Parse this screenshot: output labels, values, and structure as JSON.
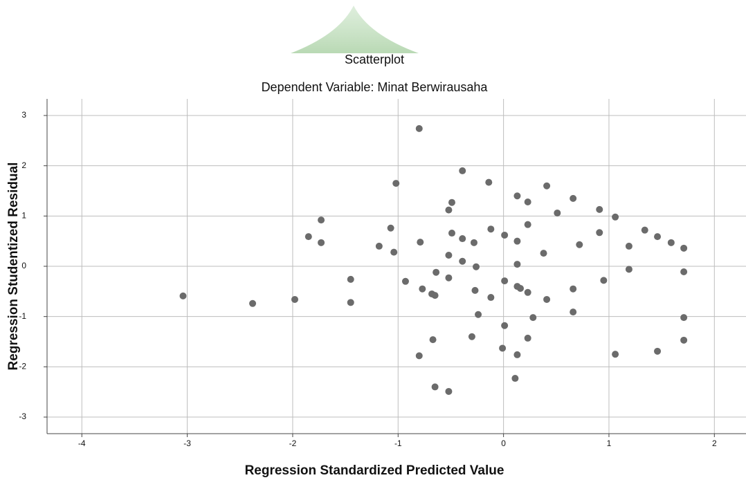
{
  "chart_data": {
    "type": "scatter",
    "title": "Scatterplot",
    "subtitle": "Dependent Variable: Minat Berwirausaha",
    "x_label": "Regression Standardized Predicted Value",
    "y_label": "Regression Studentized Residual",
    "color": "#6b6b6b",
    "grid": true,
    "xlim": [
      -4.33,
      2.3
    ],
    "ylim": [
      -3.33,
      3.33
    ],
    "xticks": [
      -4,
      -3,
      -2,
      -1,
      0,
      1,
      2
    ],
    "yticks": [
      -3,
      -2,
      -1,
      0,
      1,
      2,
      3
    ],
    "x": [
      -3.04,
      -2.38,
      -1.98,
      -1.85,
      -1.73,
      -1.73,
      -1.45,
      -1.45,
      -1.18,
      -1.07,
      -1.04,
      -1.02,
      -0.93,
      -0.8,
      -0.79,
      -0.8,
      -0.77,
      -0.68,
      -0.65,
      -0.67,
      -0.65,
      -0.64,
      -0.49,
      -0.52,
      -0.49,
      -0.52,
      -0.52,
      -0.52,
      -0.39,
      -0.39,
      -0.39,
      -0.28,
      -0.3,
      -0.26,
      -0.27,
      -0.24,
      -0.14,
      -0.12,
      -0.12,
      0.01,
      0.01,
      0.01,
      -0.01,
      0.11,
      0.13,
      0.13,
      0.13,
      0.13,
      0.16,
      0.13,
      0.23,
      0.23,
      0.23,
      0.23,
      0.28,
      0.38,
      0.41,
      0.41,
      0.51,
      0.66,
      0.66,
      0.66,
      0.72,
      0.91,
      0.91,
      0.95,
      1.06,
      1.06,
      1.19,
      1.19,
      1.34,
      1.46,
      1.46,
      1.59,
      1.71,
      1.71,
      1.71,
      1.71
    ],
    "values": [
      -0.59,
      -0.74,
      -0.66,
      0.59,
      0.92,
      0.47,
      -0.26,
      -0.72,
      0.4,
      0.76,
      0.28,
      1.65,
      -0.3,
      2.74,
      0.48,
      -1.78,
      -0.45,
      -0.55,
      -0.58,
      -1.46,
      -2.4,
      -0.12,
      1.27,
      1.12,
      0.66,
      0.22,
      -0.23,
      -2.49,
      1.9,
      0.55,
      0.1,
      0.47,
      -1.4,
      -0.01,
      -0.48,
      -0.96,
      1.67,
      0.74,
      -0.62,
      0.62,
      -0.29,
      -1.18,
      -1.63,
      -2.23,
      1.4,
      0.5,
      0.04,
      -0.4,
      -0.44,
      -1.76,
      1.28,
      0.83,
      -0.52,
      -1.43,
      -1.02,
      0.26,
      1.6,
      -0.66,
      1.06,
      1.35,
      -0.45,
      -0.91,
      0.43,
      1.13,
      0.67,
      -0.28,
      0.98,
      -1.75,
      0.4,
      -0.06,
      0.72,
      0.59,
      -1.69,
      0.47,
      0.36,
      -0.11,
      -1.02,
      -1.47
    ]
  }
}
